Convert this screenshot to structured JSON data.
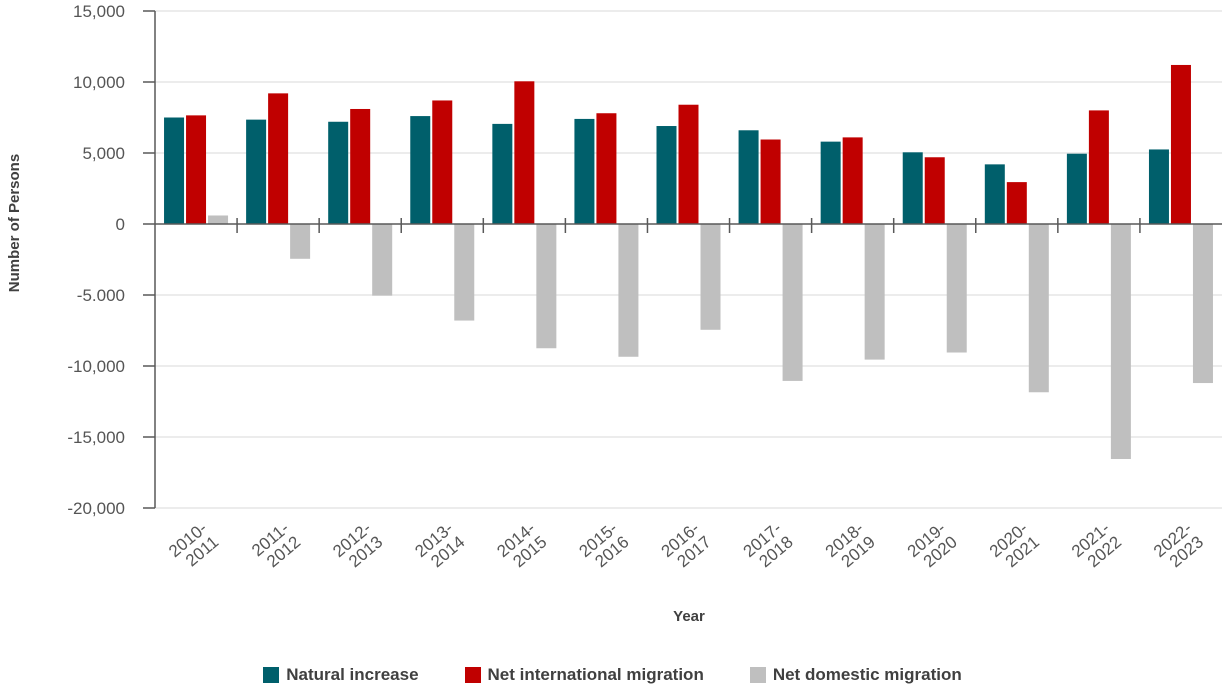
{
  "chart_data": {
    "type": "bar",
    "xlabel": "Year",
    "ylabel": "Number of Persons",
    "ylim": [
      -20000,
      15000
    ],
    "yticks": [
      15000,
      10000,
      5000,
      0,
      -5000,
      -10000,
      -15000,
      -20000
    ],
    "ytick_labels": [
      "15,000",
      "10,000",
      "5,000",
      "0",
      "-5.000",
      "-10,000",
      "-15,000",
      "-20,000"
    ],
    "grid": true,
    "legend_position": "bottom",
    "categories": [
      [
        "2010-",
        "2011"
      ],
      [
        "2011-",
        "2012"
      ],
      [
        "2012-",
        "2013"
      ],
      [
        "2013-",
        "2014"
      ],
      [
        "2014-",
        "2015"
      ],
      [
        "2015-",
        "2016"
      ],
      [
        "2016-",
        "2017"
      ],
      [
        "2017-",
        "2018"
      ],
      [
        "2018-",
        "2019"
      ],
      [
        "2019-",
        "2020"
      ],
      [
        "2020-",
        "2021"
      ],
      [
        "2021-",
        "2022"
      ],
      [
        "2022-",
        "2023"
      ]
    ],
    "series": [
      {
        "name": "Natural increase",
        "color": "#005f6b",
        "values": [
          7500,
          7350,
          7200,
          7600,
          7050,
          7400,
          6900,
          6600,
          5800,
          5050,
          4200,
          4950,
          5250
        ]
      },
      {
        "name": "Net international migration",
        "color": "#c00000",
        "values": [
          7650,
          9200,
          8100,
          8700,
          10050,
          7800,
          8400,
          5950,
          6100,
          4700,
          2950,
          8000,
          11200
        ]
      },
      {
        "name": "Net domestic migration",
        "color": "#bfbfbf",
        "values": [
          600,
          -2450,
          -5050,
          -6800,
          -8750,
          -9350,
          -7450,
          -11050,
          -9550,
          -9050,
          -11850,
          -16550,
          -11200
        ]
      }
    ]
  }
}
